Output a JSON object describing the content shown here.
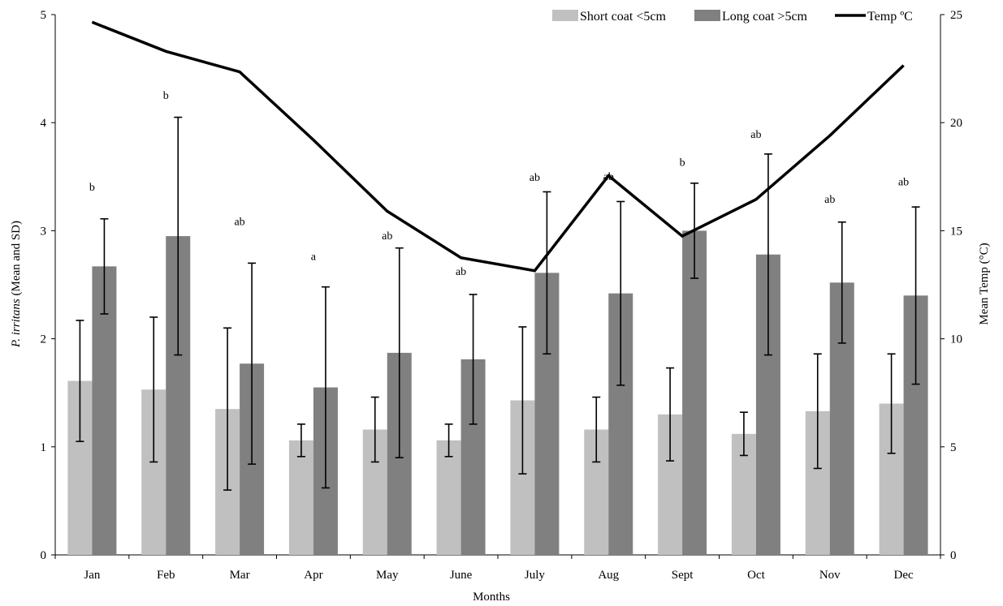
{
  "chart_data": {
    "type": "bar",
    "categories": [
      "Jan",
      "Feb",
      "Mar",
      "Apr",
      "May",
      "June",
      "July",
      "Aug",
      "Sept",
      "Oct",
      "Nov",
      "Dec"
    ],
    "series": [
      {
        "name": "Short coat <5cm",
        "color": "#c0c0c0",
        "values": [
          1.61,
          1.53,
          1.35,
          1.06,
          1.16,
          1.06,
          1.43,
          1.16,
          1.3,
          1.12,
          1.33,
          1.4
        ],
        "sd": [
          0.56,
          0.67,
          0.75,
          0.15,
          0.3,
          0.15,
          0.68,
          0.3,
          0.43,
          0.2,
          0.53,
          0.46
        ]
      },
      {
        "name": "Long coat >5cm",
        "color": "#808080",
        "values": [
          2.67,
          2.95,
          1.77,
          1.55,
          1.87,
          1.81,
          2.61,
          2.42,
          3.0,
          2.78,
          2.52,
          2.4
        ],
        "sd": [
          0.44,
          1.1,
          0.93,
          0.93,
          0.97,
          0.6,
          0.75,
          0.85,
          0.44,
          0.93,
          0.56,
          0.82
        ]
      }
    ],
    "line_series": {
      "name": "Temp ºC",
      "color": "#000000",
      "axis": "right",
      "values": [
        24.65,
        23.3,
        22.35,
        19.2,
        15.9,
        13.75,
        13.15,
        17.55,
        14.75,
        16.45,
        19.4,
        22.65
      ]
    },
    "annotations": [
      "b",
      "b",
      "ab",
      "a",
      "ab",
      "ab",
      "ab",
      "ab",
      "b",
      "ab",
      "ab",
      "ab"
    ],
    "annotation_y": [
      3.4,
      4.25,
      3.08,
      2.76,
      2.95,
      2.62,
      3.49,
      3.5,
      3.63,
      3.89,
      3.29,
      3.45
    ],
    "xlabel": "Months",
    "ylabel_italic": "P. irritans",
    "ylabel_rest": " (Mean and SD)",
    "y2label": "Mean Temp (°C)",
    "ylim": [
      0,
      5
    ],
    "yticks": [
      "0",
      "1",
      "2",
      "3",
      "4",
      "5"
    ],
    "y2lim": [
      0,
      25
    ],
    "y2ticks": [
      "0",
      "5",
      "10",
      "15",
      "20",
      "25"
    ],
    "grid": false,
    "legend_position": "top-right"
  }
}
